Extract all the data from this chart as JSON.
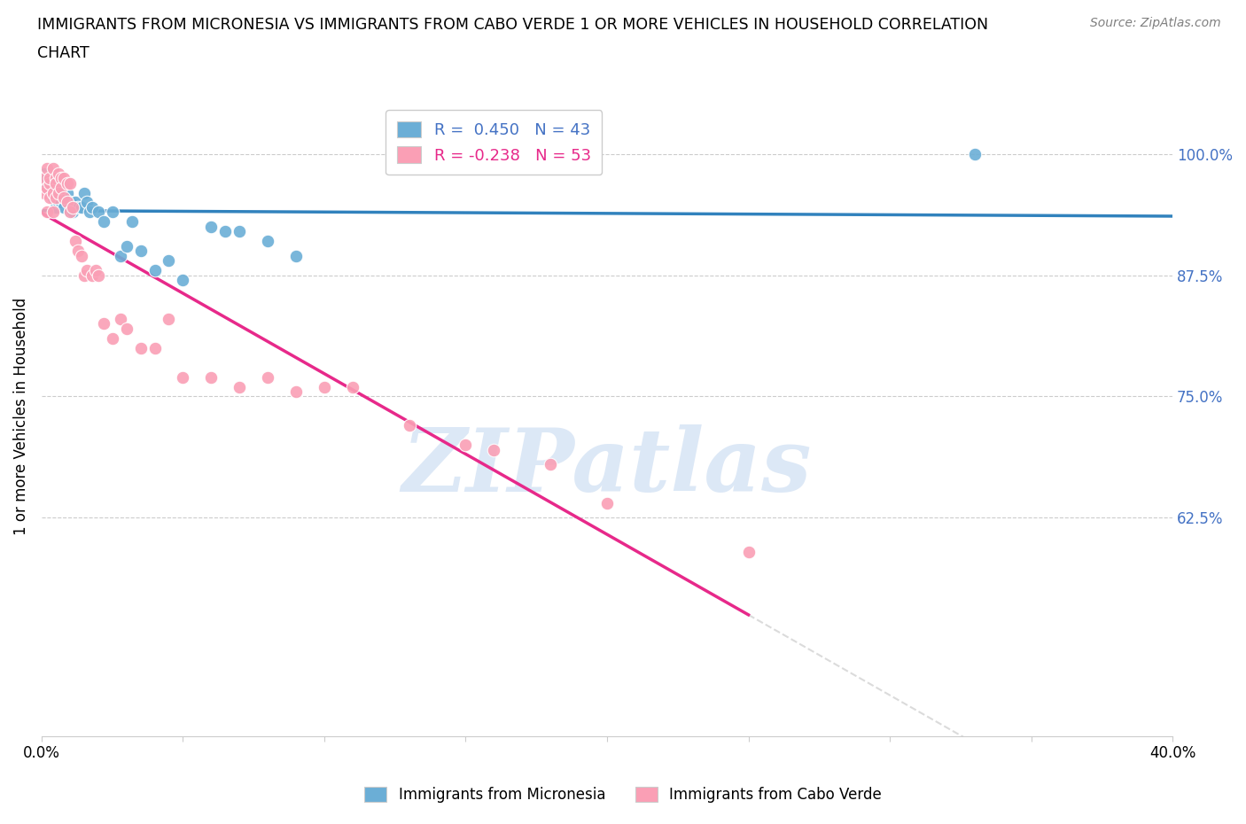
{
  "title_line1": "IMMIGRANTS FROM MICRONESIA VS IMMIGRANTS FROM CABO VERDE 1 OR MORE VEHICLES IN HOUSEHOLD CORRELATION",
  "title_line2": "CHART",
  "source": "Source: ZipAtlas.com",
  "ylabel": "1 or more Vehicles in Household",
  "xlim": [
    0.0,
    0.4
  ],
  "ylim": [
    0.4,
    1.06
  ],
  "yticks": [
    0.625,
    0.75,
    0.875,
    1.0
  ],
  "ytick_labels": [
    "62.5%",
    "75.0%",
    "87.5%",
    "100.0%"
  ],
  "xticks": [
    0.0,
    0.05,
    0.1,
    0.15,
    0.2,
    0.25,
    0.3,
    0.35,
    0.4
  ],
  "xtick_labels": [
    "0.0%",
    "",
    "",
    "",
    "",
    "",
    "",
    "",
    "40.0%"
  ],
  "micronesia_color": "#6baed6",
  "cabo_verde_color": "#fa9fb5",
  "micronesia_R": 0.45,
  "micronesia_N": 43,
  "cabo_verde_R": -0.238,
  "cabo_verde_N": 53,
  "trend_micronesia_color": "#3182bd",
  "trend_cabo_verde_color": "#e7298a",
  "watermark": "ZIPatlas",
  "watermark_color": "#c6d9f0",
  "micronesia_x": [
    0.001,
    0.001,
    0.002,
    0.002,
    0.003,
    0.003,
    0.004,
    0.004,
    0.005,
    0.005,
    0.006,
    0.006,
    0.007,
    0.007,
    0.008,
    0.008,
    0.009,
    0.01,
    0.01,
    0.011,
    0.012,
    0.013,
    0.014,
    0.015,
    0.016,
    0.017,
    0.018,
    0.02,
    0.022,
    0.025,
    0.028,
    0.03,
    0.032,
    0.035,
    0.04,
    0.045,
    0.05,
    0.06,
    0.065,
    0.07,
    0.08,
    0.09,
    0.33
  ],
  "micronesia_y": [
    0.98,
    0.97,
    0.975,
    0.965,
    0.975,
    0.96,
    0.97,
    0.955,
    0.96,
    0.945,
    0.96,
    0.95,
    0.97,
    0.95,
    0.965,
    0.945,
    0.96,
    0.95,
    0.94,
    0.94,
    0.95,
    0.945,
    0.945,
    0.96,
    0.95,
    0.94,
    0.945,
    0.94,
    0.93,
    0.94,
    0.895,
    0.905,
    0.93,
    0.9,
    0.88,
    0.89,
    0.87,
    0.925,
    0.92,
    0.92,
    0.91,
    0.895,
    1.0
  ],
  "cabo_verde_x": [
    0.001,
    0.001,
    0.002,
    0.002,
    0.002,
    0.003,
    0.003,
    0.003,
    0.004,
    0.004,
    0.004,
    0.005,
    0.005,
    0.005,
    0.006,
    0.006,
    0.007,
    0.007,
    0.008,
    0.008,
    0.009,
    0.009,
    0.01,
    0.01,
    0.011,
    0.012,
    0.013,
    0.014,
    0.015,
    0.016,
    0.018,
    0.019,
    0.02,
    0.022,
    0.025,
    0.028,
    0.03,
    0.035,
    0.04,
    0.045,
    0.05,
    0.06,
    0.07,
    0.08,
    0.09,
    0.1,
    0.11,
    0.13,
    0.15,
    0.16,
    0.18,
    0.2,
    0.25
  ],
  "cabo_verde_y": [
    0.975,
    0.96,
    0.985,
    0.965,
    0.94,
    0.97,
    0.955,
    0.975,
    0.985,
    0.96,
    0.94,
    0.975,
    0.955,
    0.97,
    0.98,
    0.96,
    0.975,
    0.965,
    0.975,
    0.955,
    0.97,
    0.95,
    0.97,
    0.94,
    0.945,
    0.91,
    0.9,
    0.895,
    0.875,
    0.88,
    0.875,
    0.88,
    0.875,
    0.825,
    0.81,
    0.83,
    0.82,
    0.8,
    0.8,
    0.83,
    0.77,
    0.77,
    0.76,
    0.77,
    0.755,
    0.76,
    0.76,
    0.72,
    0.7,
    0.695,
    0.68,
    0.64,
    0.59
  ]
}
